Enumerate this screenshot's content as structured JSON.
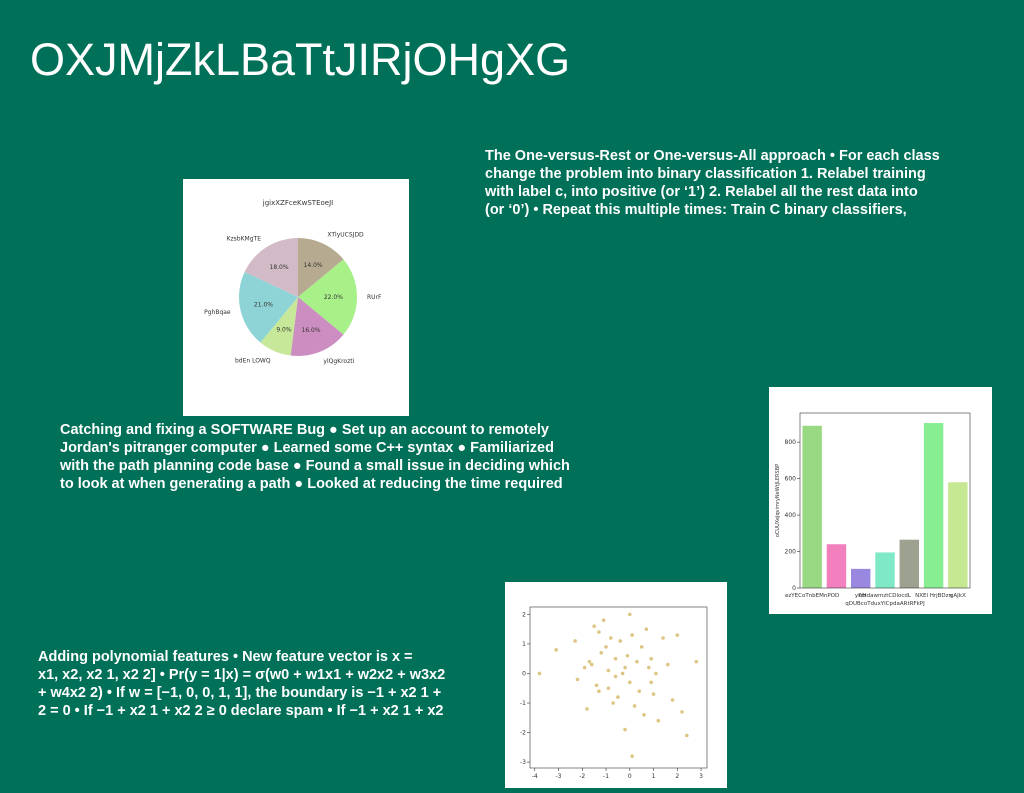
{
  "title": "OXJMjZkLBaTtJIRjOHgXG",
  "texts": [
    [
      "The One-versus-Rest or One-versus-All approach • For each class",
      "change the problem into binary classification 1. Relabel training",
      "with label c, into positive (or ‘1’) 2. Relabel all the rest data into",
      "(or ‘0’) • Repeat this multiple times: Train C binary classifiers,"
    ],
    [
      "Catching and fixing a SOFTWARE Bug ● Set up an account to remotely",
      "Jordan's pitranger computer ● Learned some C++ syntax ● Familiarized",
      "with the path planning code base ● Found a small issue in deciding which",
      "to look at when generating a path ● Looked at reducing the time required"
    ],
    [
      "Adding polynomial features • New feature vector is x =",
      "x1, x2, x2 1, x2 2] • Pr(y = 1|x) = σ(w0 + w1x1 + w2x2 + w3x2",
      "+ w4x2 2) • If w = [−1, 0, 0, 1, 1], the boundary is −1 + x2 1 +",
      "2 = 0 • If −1 + x2 1 + x2 2 ≥ 0 declare spam • If −1 + x2 1 + x2"
    ]
  ],
  "chart_data": [
    {
      "type": "pie",
      "title": "jgixXZFceKwSTEoeJI",
      "categories": [
        "XTlyUCSJDD",
        "RUrF",
        "ylQgKrozti",
        "bdEn LOWQ",
        "PghBqae",
        "KzsbKMgTE"
      ],
      "values": [
        14,
        22,
        16,
        9,
        21,
        18
      ],
      "value_labels": [
        "14.0%",
        "22.0%",
        "16.0%",
        "9.0%",
        "21.0%",
        "18.0%"
      ],
      "colors": [
        "#b6ab90",
        "#a8f088",
        "#cc8ec0",
        "#c6e898",
        "#8ed4d6",
        "#d2bbc6"
      ]
    },
    {
      "type": "bar",
      "xlabel": "qDUBcoTduxYlCpdaARtRFkPJ",
      "ylabel": "oCUUXeJqvimryNeWtJLERSBP",
      "categories": [
        "ezYECoTnbEMnPOD",
        null,
        "yPts",
        "uHdawmztCDlocdL",
        null,
        "NXEl HrjBDzn",
        "gAJkX"
      ],
      "values": [
        890,
        240,
        105,
        195,
        265,
        905,
        580
      ],
      "colors": [
        "#9ad984",
        "#f27fbe",
        "#9a88e0",
        "#7fe8c6",
        "#9ca190",
        "#88ee92",
        "#c6e892"
      ],
      "ylim": [
        0,
        960
      ],
      "yticks": [
        0,
        200,
        400,
        600,
        800
      ]
    },
    {
      "type": "scatter",
      "color": "#d4b866",
      "x": [
        -3.8,
        -3.1,
        -2.3,
        -2.2,
        -1.9,
        -1.8,
        -1.6,
        -1.5,
        -1.4,
        -1.3,
        -1.2,
        -1.1,
        -1.0,
        -0.9,
        -0.9,
        -0.8,
        -0.7,
        -0.6,
        -0.5,
        -0.4,
        -0.3,
        -0.2,
        -0.1,
        0.0,
        0.0,
        0.1,
        0.2,
        0.3,
        0.4,
        0.5,
        0.6,
        0.7,
        0.8,
        0.9,
        1.0,
        1.1,
        1.2,
        1.4,
        1.6,
        1.8,
        2.0,
        2.2,
        2.4,
        2.8,
        -1.3,
        -0.6,
        0.1,
        0.9,
        -1.7,
        -0.2
      ],
      "y": [
        0.0,
        0.8,
        1.1,
        -0.2,
        0.2,
        -1.2,
        0.3,
        1.6,
        -0.4,
        1.4,
        0.7,
        1.8,
        0.9,
        -0.5,
        0.1,
        1.2,
        -1.0,
        0.5,
        -0.8,
        1.1,
        0.0,
        -1.9,
        0.6,
        2.0,
        -0.3,
        1.3,
        -1.1,
        0.4,
        -0.6,
        0.9,
        -1.4,
        1.5,
        0.2,
        0.5,
        -0.7,
        0.0,
        -1.6,
        1.2,
        0.3,
        -0.9,
        1.3,
        -1.3,
        -2.1,
        0.4,
        -0.6,
        -0.1,
        -2.8,
        -0.3,
        0.4,
        0.2
      ],
      "xlim": [
        -4.2,
        3.25
      ],
      "ylim": [
        -3.2,
        2.25
      ],
      "xticks": [
        -4,
        -3,
        -2,
        -1,
        0,
        1,
        2,
        3
      ],
      "yticks": [
        -3,
        -2,
        -1,
        0,
        1,
        2
      ]
    }
  ]
}
